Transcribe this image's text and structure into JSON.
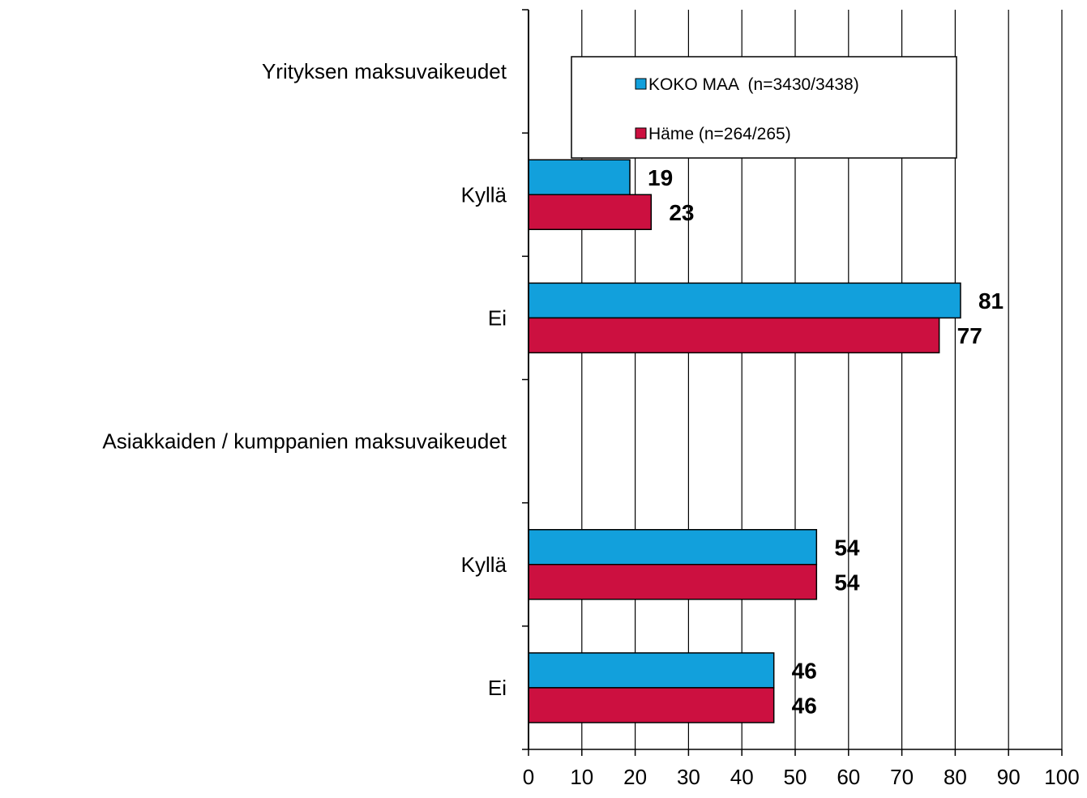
{
  "chart_data": {
    "type": "bar",
    "orientation": "horizontal",
    "categories": [
      "Yrityksen maksuvaikeudet",
      "Kyllä",
      "Ei",
      "Asiakkaiden / kumppanien maksuvaikeudet",
      "Kyllä",
      "Ei"
    ],
    "series": [
      {
        "name": "KOKO MAA  (n=3430/3438)",
        "color": "#12a0dc",
        "values": [
          null,
          19,
          81,
          null,
          54,
          46
        ]
      },
      {
        "name": "Häme (n=264/265)",
        "color": "#cc1040",
        "values": [
          null,
          23,
          77,
          null,
          54,
          46
        ]
      }
    ],
    "xlim": [
      0,
      100
    ],
    "xticks": [
      "0",
      "10",
      "20",
      "30",
      "40",
      "50",
      "60",
      "70",
      "80",
      "90",
      "100"
    ],
    "grid": "vertical",
    "legend_position": "top-right"
  }
}
